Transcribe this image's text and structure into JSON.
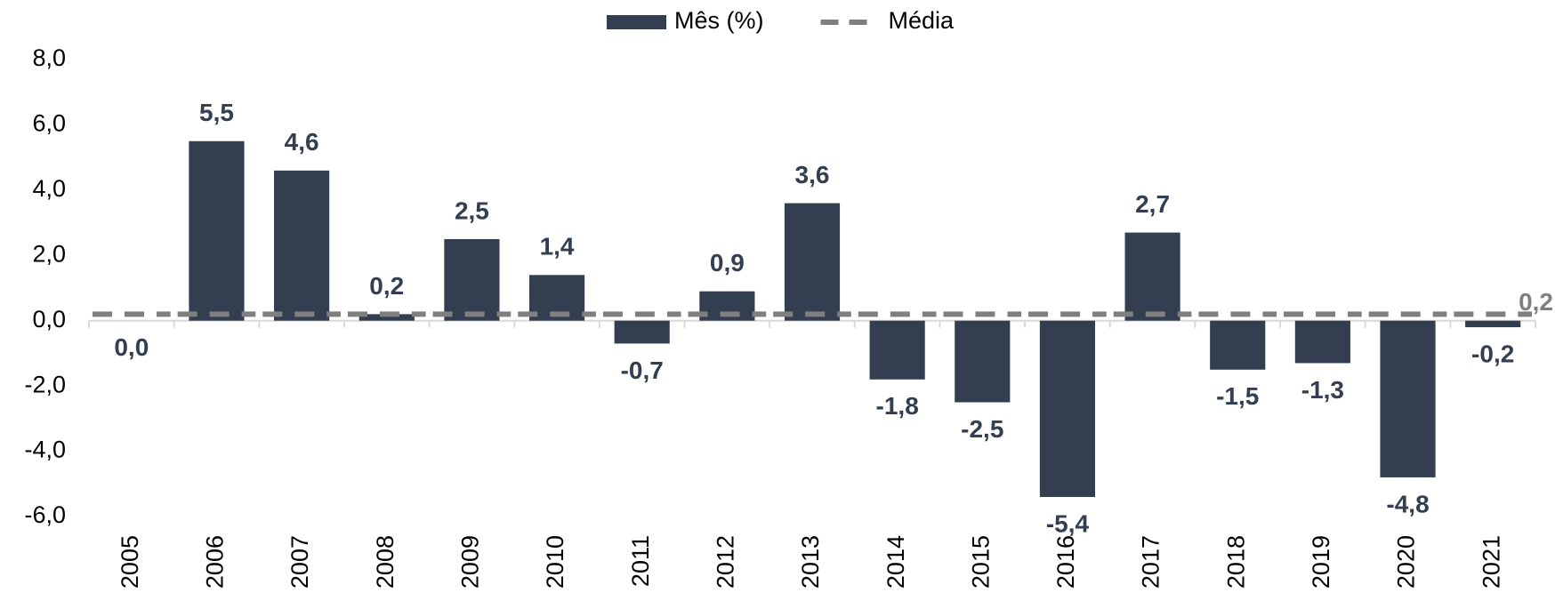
{
  "chart_data": {
    "type": "bar",
    "categories": [
      "2005",
      "2006",
      "2007",
      "2008",
      "2009",
      "2010",
      "2011",
      "2012",
      "2013",
      "2014",
      "2015",
      "2016",
      "2017",
      "2018",
      "2019",
      "2020",
      "2021"
    ],
    "series": [
      {
        "name": "Mês (%)",
        "type": "bar",
        "color": "#333f50",
        "values": [
          0.0,
          5.5,
          4.6,
          0.2,
          2.5,
          1.4,
          -0.7,
          0.9,
          3.6,
          -1.8,
          -2.5,
          -5.4,
          2.7,
          -1.5,
          -1.3,
          -4.8,
          -0.2
        ],
        "value_labels": [
          "0,0",
          "5,5",
          "4,6",
          "0,2",
          "2,5",
          "1,4",
          "-0,7",
          "0,9",
          "3,6",
          "-1,8",
          "-2,5",
          "-5,4",
          "2,7",
          "-1,5",
          "-1,3",
          "-4,8",
          "-0,2"
        ]
      },
      {
        "name": "Média",
        "type": "line",
        "color": "#7f7f7f",
        "dashed": true,
        "values": [
          0.2,
          0.2,
          0.2,
          0.2,
          0.2,
          0.2,
          0.2,
          0.2,
          0.2,
          0.2,
          0.2,
          0.2,
          0.2,
          0.2,
          0.2,
          0.2,
          0.2
        ],
        "value_labels": [
          null,
          null,
          null,
          null,
          null,
          null,
          null,
          null,
          null,
          null,
          null,
          null,
          null,
          null,
          null,
          null,
          "0,2"
        ]
      }
    ],
    "ylim": [
      -6,
      8
    ],
    "yticks": [
      {
        "value": -6,
        "label": "-6,0"
      },
      {
        "value": -4,
        "label": "-4,0"
      },
      {
        "value": -2,
        "label": "-2,0"
      },
      {
        "value": 0,
        "label": "0,0"
      },
      {
        "value": 2,
        "label": "2,0"
      },
      {
        "value": 4,
        "label": "4,0"
      },
      {
        "value": 6,
        "label": "6,0"
      },
      {
        "value": 8,
        "label": "8,0"
      }
    ],
    "grid": false,
    "legend": "top"
  }
}
